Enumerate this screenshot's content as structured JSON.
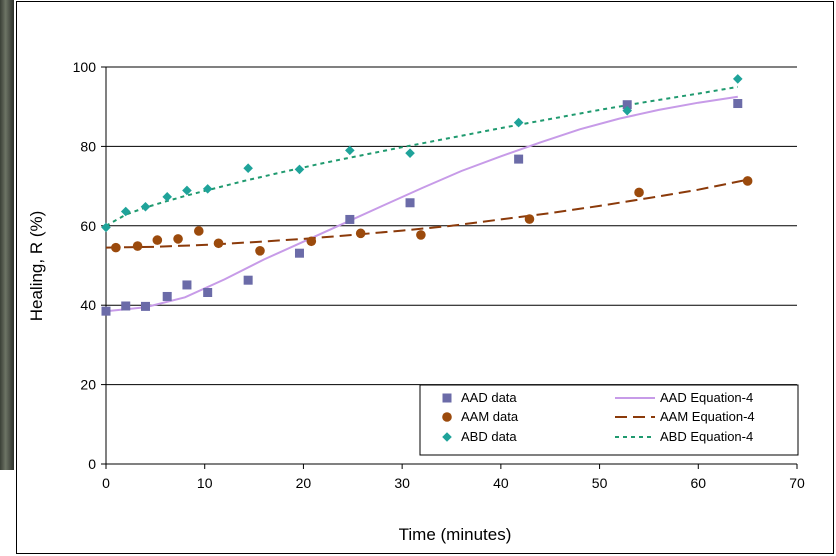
{
  "chart_data": {
    "type": "scatter",
    "xlabel": "Time (minutes)",
    "ylabel": "Healing, R (%)",
    "xlim": [
      0,
      70
    ],
    "ylim": [
      0,
      100
    ],
    "xticks": [
      0,
      10,
      20,
      30,
      40,
      50,
      60,
      70
    ],
    "yticks": [
      0,
      20,
      40,
      60,
      80,
      100
    ],
    "grid": "horizontal",
    "legend_position": "bottom-right",
    "series": [
      {
        "name": "AAD data",
        "kind": "scatter",
        "marker": "square",
        "color": "#6b6ba8",
        "x": [
          0,
          2,
          4,
          6.2,
          8.2,
          10.3,
          14.4,
          19.6,
          24.7,
          30.8,
          41.8,
          52.8,
          64
        ],
        "y": [
          38.5,
          39.8,
          39.7,
          42.2,
          45.1,
          43.2,
          46.3,
          53.1,
          61.6,
          65.8,
          76.8,
          90.5,
          90.8
        ]
      },
      {
        "name": "AAM data",
        "kind": "scatter",
        "marker": "circle",
        "color": "#9b4a0c",
        "x": [
          1,
          3.2,
          5.2,
          7.3,
          9.4,
          11.4,
          15.6,
          20.8,
          25.8,
          31.9,
          42.9,
          54,
          65
        ],
        "y": [
          54.5,
          54.9,
          56.4,
          56.7,
          58.7,
          55.6,
          53.7,
          56.1,
          58.1,
          57.7,
          61.7,
          68.4,
          71.3
        ]
      },
      {
        "name": "ABD data",
        "kind": "scatter",
        "marker": "diamond",
        "color": "#1fa39a",
        "x": [
          0,
          2,
          4,
          6.2,
          8.2,
          10.3,
          14.4,
          19.6,
          24.7,
          30.8,
          41.8,
          52.8,
          64
        ],
        "y": [
          59.6,
          63.6,
          64.8,
          67.3,
          68.9,
          69.3,
          74.5,
          74.2,
          79,
          78.3,
          86,
          89,
          97
        ]
      },
      {
        "name": "AAD Equation-4",
        "kind": "line",
        "style": "solid",
        "color": "#c79be8",
        "x": [
          0,
          4,
          8,
          12,
          16,
          20,
          24,
          28,
          32,
          36,
          40,
          44,
          48,
          52,
          56,
          60,
          64
        ],
        "y": [
          38.5,
          39.5,
          42,
          46.5,
          51.5,
          56,
          60.5,
          65,
          69.5,
          73.8,
          77.5,
          81,
          84.3,
          87,
          89.2,
          91,
          92.5
        ]
      },
      {
        "name": "AAM Equation-4",
        "kind": "line",
        "style": "dashed",
        "color": "#8b3a0a",
        "x": [
          0,
          5,
          10,
          15,
          20,
          25,
          30,
          35,
          40,
          45,
          50,
          55,
          60,
          65
        ],
        "y": [
          54.5,
          54.7,
          55.2,
          55.9,
          56.7,
          57.7,
          58.8,
          60,
          61.6,
          63.2,
          65,
          67,
          69.1,
          71.6
        ]
      },
      {
        "name": "ABD Equation-4",
        "kind": "line",
        "style": "dotted",
        "color": "#1f9a6f",
        "x": [
          0,
          2,
          4,
          6,
          8,
          10,
          14,
          18,
          22,
          26,
          30,
          35,
          40,
          45,
          50,
          55,
          60,
          64
        ],
        "y": [
          60,
          62.8,
          64.6,
          66.1,
          67.5,
          68.8,
          71.3,
          73.6,
          75.8,
          77.8,
          79.8,
          82.2,
          84.6,
          86.9,
          89.2,
          91.3,
          93.3,
          95
        ]
      }
    ]
  }
}
